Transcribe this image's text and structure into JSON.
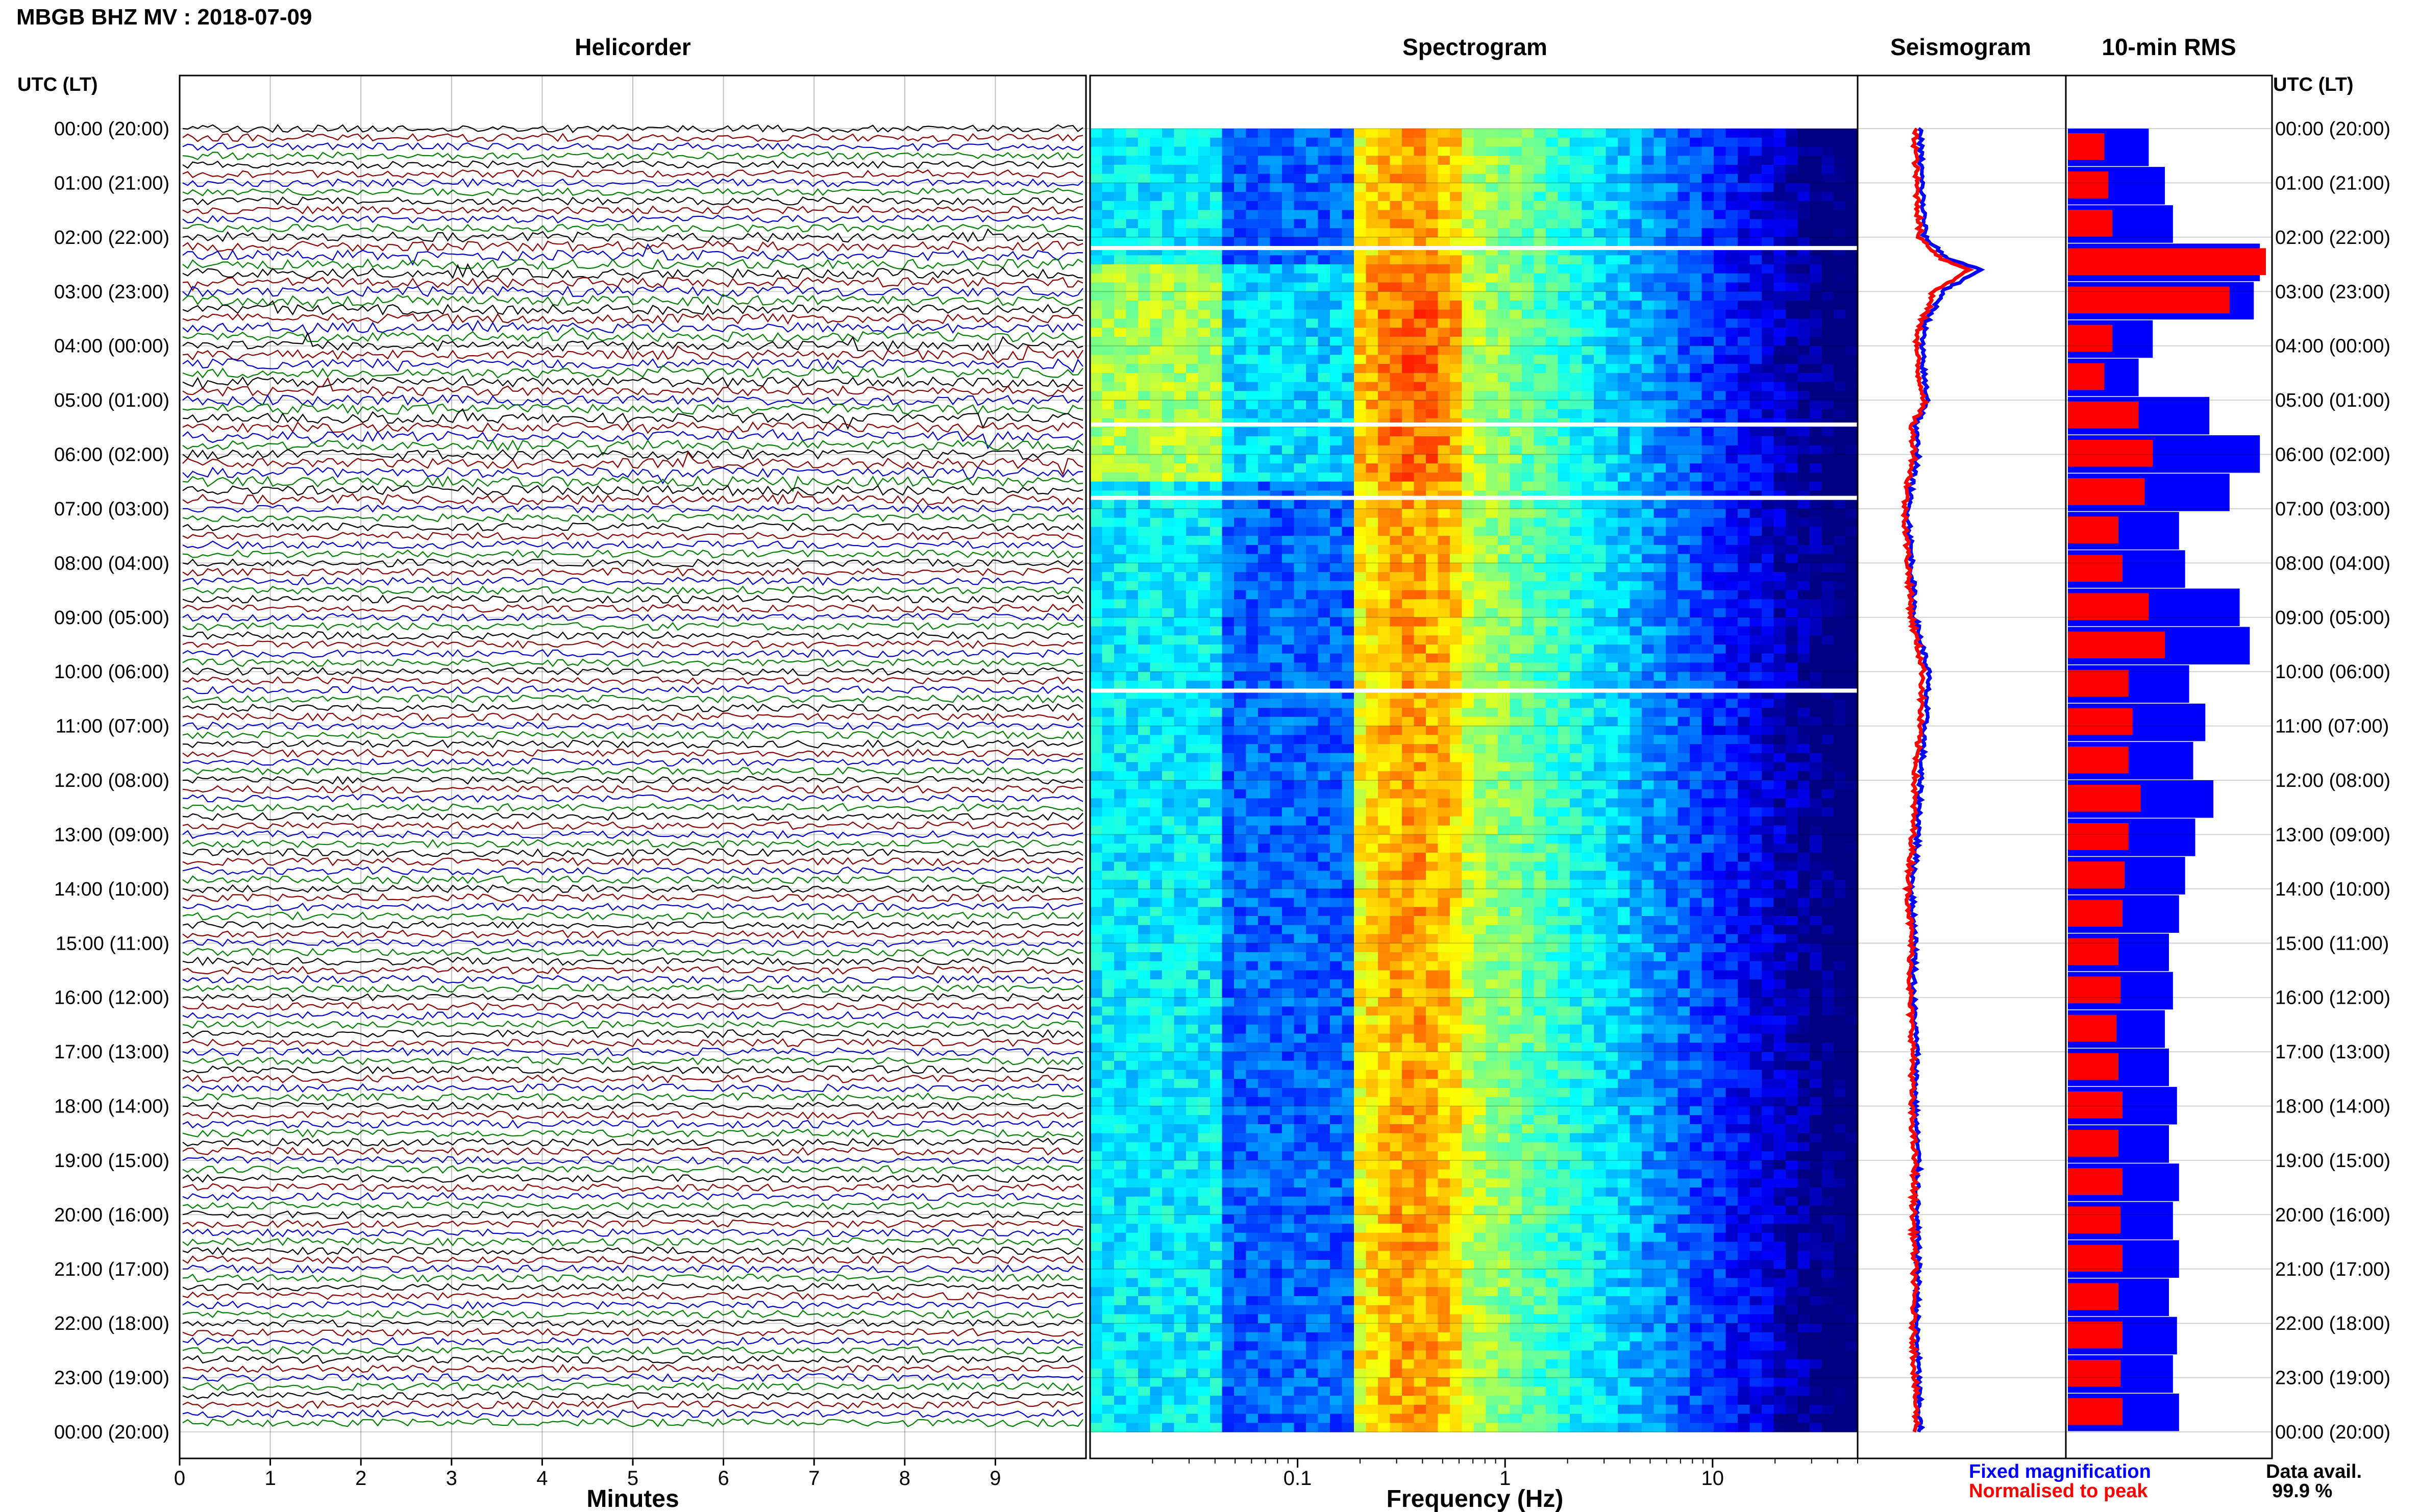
{
  "header": {
    "title": "MBGB BHZ MV : 2018-07-09",
    "panel_titles": {
      "helicorder": "Helicorder",
      "spectrogram": "Spectrogram",
      "seismogram": "Seismogram",
      "rms": "10-min RMS"
    },
    "utc_label_left": "UTC (LT)",
    "utc_label_right": "UTC (LT)"
  },
  "time_labels": [
    "00:00 (20:00)",
    "01:00 (21:00)",
    "02:00 (22:00)",
    "03:00 (23:00)",
    "04:00 (00:00)",
    "05:00 (01:00)",
    "06:00 (02:00)",
    "07:00 (03:00)",
    "08:00 (04:00)",
    "09:00 (05:00)",
    "10:00 (06:00)",
    "11:00 (07:00)",
    "12:00 (08:00)",
    "13:00 (09:00)",
    "14:00 (10:00)",
    "15:00 (11:00)",
    "16:00 (12:00)",
    "17:00 (13:00)",
    "18:00 (14:00)",
    "19:00 (15:00)",
    "20:00 (16:00)",
    "21:00 (17:00)",
    "22:00 (18:00)",
    "23:00 (19:00)",
    "00:00 (20:00)"
  ],
  "footer": {
    "x_label_helicorder": "Minutes",
    "x_label_spectrogram": "Frequency (Hz)",
    "legend_fixed": "Fixed magnification",
    "legend_normalised": "Normalised to peak",
    "data_avail_label": "Data avail.",
    "data_avail_value": "99.9 %"
  },
  "colors": {
    "trace_cycle": [
      "#000000",
      "#8b0000",
      "#0000cc",
      "#008000"
    ],
    "fixed": "#0000ff",
    "normalised": "#ff0000"
  },
  "chart_data": [
    {
      "type": "line",
      "name": "helicorder",
      "xlabel": "Minutes",
      "x_ticks": [
        "0",
        "1",
        "2",
        "3",
        "4",
        "5",
        "6",
        "7",
        "8",
        "9"
      ],
      "xlim": [
        0,
        10
      ],
      "rows_per_hour": 6,
      "hours": 24,
      "disturbed_hours": [
        2,
        3,
        4,
        5,
        6
      ],
      "gap_rows_hour": [
        10
      ]
    },
    {
      "type": "heatmap",
      "name": "spectrogram",
      "xlabel": "Frequency (Hz)",
      "x_scale": "log",
      "xlim": [
        0.01,
        50
      ],
      "x_ticks": [
        "0.1",
        "1",
        "10"
      ],
      "x_tick_values": [
        0.1,
        1,
        10
      ],
      "colormap": "jet",
      "peak_band_hz": [
        0.2,
        0.6
      ],
      "blank_rows_hour": [
        2.2,
        5.45,
        6.8,
        10.35
      ]
    },
    {
      "type": "line",
      "name": "seismogram_rms_profile",
      "hours": [
        0,
        1,
        2,
        2.4,
        2.6,
        2.8,
        3,
        3.3,
        3.6,
        4,
        4.5,
        5,
        5.5,
        6,
        6.5,
        7,
        8,
        9,
        10,
        11,
        12,
        13,
        14,
        15,
        16,
        17,
        18,
        19,
        20,
        21,
        22,
        23,
        24
      ],
      "fixed": [
        0.25,
        0.26,
        0.28,
        0.42,
        0.62,
        0.5,
        0.38,
        0.34,
        0.28,
        0.26,
        0.27,
        0.3,
        0.22,
        0.24,
        0.2,
        0.18,
        0.2,
        0.22,
        0.3,
        0.28,
        0.25,
        0.24,
        0.2,
        0.22,
        0.21,
        0.23,
        0.22,
        0.24,
        0.23,
        0.24,
        0.23,
        0.24,
        0.25
      ],
      "normalised": [
        0.22,
        0.23,
        0.25,
        0.38,
        0.55,
        0.44,
        0.33,
        0.3,
        0.25,
        0.23,
        0.24,
        0.28,
        0.2,
        0.22,
        0.18,
        0.16,
        0.18,
        0.2,
        0.27,
        0.25,
        0.22,
        0.21,
        0.18,
        0.2,
        0.19,
        0.21,
        0.2,
        0.22,
        0.21,
        0.22,
        0.21,
        0.22,
        0.23
      ]
    },
    {
      "type": "bar",
      "name": "rms_10min",
      "orientation": "horizontal",
      "series": [
        {
          "name": "Fixed magnification",
          "values_by_hour": [
            0.4,
            0.48,
            0.52,
            0.95,
            0.92,
            0.42,
            0.35,
            0.7,
            0.95,
            0.8,
            0.55,
            0.58,
            0.85,
            0.9,
            0.6,
            0.68,
            0.62,
            0.72,
            0.63,
            0.58,
            0.55,
            0.5,
            0.52,
            0.48,
            0.5,
            0.54,
            0.5,
            0.55,
            0.52,
            0.55,
            0.5,
            0.54,
            0.52,
            0.55
          ]
        },
        {
          "name": "Normalised to peak",
          "values_by_hour": [
            0.18,
            0.2,
            0.22,
            0.98,
            0.8,
            0.22,
            0.18,
            0.35,
            0.42,
            0.38,
            0.25,
            0.27,
            0.4,
            0.48,
            0.3,
            0.32,
            0.3,
            0.36,
            0.3,
            0.28,
            0.27,
            0.25,
            0.26,
            0.24,
            0.25,
            0.27,
            0.25,
            0.27,
            0.26,
            0.27,
            0.25,
            0.27,
            0.26,
            0.27
          ]
        }
      ],
      "note_hours_sampled": 34
    }
  ]
}
